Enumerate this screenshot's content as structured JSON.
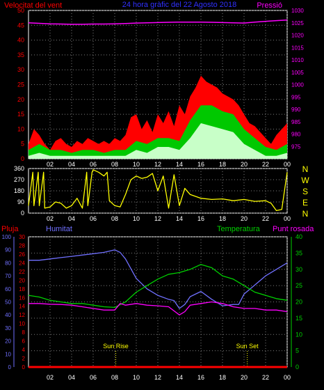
{
  "colors": {
    "background": "#000000",
    "grid": "#7f7f7f",
    "frame": "#ffffff",
    "wind_gust": "#ff0000",
    "wind_avg": "#00c800",
    "wind_min": "#c8ffc8",
    "pressure": "#ff00ff",
    "direction": "#ffff00",
    "rain": "#ff0000",
    "humidity": "#7070ff",
    "temperature": "#00d000",
    "dewpoint": "#ff00ff",
    "sun": "#ffff00"
  },
  "chart_data": [
    {
      "type": "line",
      "title": "24 hora gràfic del  22 Agosto 2018",
      "left_title": "Velocitat del vent",
      "right_title": "Pressió",
      "x_ticks": [
        "02",
        "04",
        "06",
        "08",
        "10",
        "12",
        "14",
        "16",
        "18",
        "20",
        "22",
        "00"
      ],
      "xlim": [
        0,
        24
      ],
      "ylim_left": [
        0,
        50
      ],
      "y_ticks_left": [
        "0",
        "5",
        "10",
        "15",
        "20",
        "25",
        "30",
        "35",
        "40",
        "45",
        "50"
      ],
      "ylim_right": [
        970,
        1030
      ],
      "y_ticks_right": [
        "975",
        "980",
        "985",
        "990",
        "995",
        "1000",
        "1005",
        "1010",
        "1015",
        "1020",
        "1025",
        "1030"
      ],
      "series": [
        {
          "key": "pressure",
          "axis": "right",
          "x": [
            0,
            1,
            2,
            3,
            4,
            5,
            6,
            7,
            8,
            9,
            10,
            11,
            12,
            13,
            14,
            15,
            16,
            17,
            18,
            19,
            20,
            21,
            22,
            23,
            24
          ],
          "y": [
            1025.0,
            1024.8,
            1024.6,
            1024.5,
            1024.4,
            1024.4,
            1024.5,
            1024.5,
            1024.6,
            1024.7,
            1024.9,
            1025.0,
            1025.1,
            1025.2,
            1025.3,
            1025.3,
            1025.3,
            1025.2,
            1025.1,
            1025.0,
            1024.9,
            1025.3,
            1025.6,
            1025.9,
            1026.1
          ]
        },
        {
          "key": "wind_gust",
          "axis": "left",
          "x": [
            0,
            0.5,
            1,
            1.5,
            2,
            2.5,
            3,
            3.5,
            4,
            4.5,
            5,
            5.5,
            6,
            6.5,
            7,
            7.5,
            8,
            8.5,
            9,
            9.5,
            10,
            10.5,
            11,
            11.5,
            12,
            12.5,
            13,
            13.5,
            14,
            14.5,
            15,
            15.5,
            16,
            16.5,
            17,
            17.5,
            18,
            18.5,
            19,
            19.5,
            20,
            20.5,
            21,
            21.5,
            22,
            22.5,
            23,
            23.5,
            24
          ],
          "y": [
            5,
            10,
            8,
            5,
            3,
            6,
            7,
            5,
            4,
            6,
            5,
            7,
            6,
            5,
            6,
            5,
            7,
            6,
            8,
            14,
            15,
            10,
            13,
            9,
            15,
            12,
            16,
            11,
            18,
            15,
            21,
            24,
            28,
            26,
            25,
            24,
            22,
            21,
            20,
            18,
            15,
            12,
            11,
            9,
            7,
            5,
            8,
            10,
            12
          ]
        },
        {
          "key": "wind_avg",
          "axis": "left",
          "x": [
            0,
            1,
            2,
            3,
            4,
            5,
            6,
            7,
            8,
            9,
            10,
            11,
            12,
            13,
            14,
            15,
            16,
            17,
            18,
            19,
            20,
            21,
            22,
            23,
            24
          ],
          "y": [
            3,
            5,
            3,
            3,
            2,
            3,
            3,
            2,
            3,
            3,
            6,
            5,
            7,
            7,
            6,
            13,
            18,
            18,
            16,
            15,
            10,
            7,
            4,
            3,
            5
          ]
        },
        {
          "key": "wind_min",
          "axis": "left",
          "x": [
            0,
            1,
            2,
            3,
            4,
            5,
            6,
            7,
            8,
            9,
            10,
            11,
            12,
            13,
            14,
            15,
            16,
            17,
            18,
            19,
            20,
            21,
            22,
            23,
            24
          ],
          "y": [
            1,
            2,
            1,
            1,
            1,
            1,
            1,
            1,
            1,
            1,
            3,
            2,
            4,
            4,
            3,
            7,
            12,
            11,
            10,
            9,
            5,
            3,
            1,
            1,
            2
          ]
        }
      ]
    },
    {
      "type": "line",
      "title": "",
      "x_ticks": [
        "02",
        "04",
        "06",
        "08",
        "10",
        "12",
        "14",
        "16",
        "18",
        "20",
        "22",
        "00"
      ],
      "xlim": [
        0,
        24
      ],
      "ylim": [
        0,
        360
      ],
      "y_ticks": [
        "0",
        "90",
        "180",
        "270",
        "360"
      ],
      "compass_labels": [
        "N",
        "W",
        "S",
        "E",
        "N"
      ],
      "series": [
        {
          "key": "direction",
          "x": [
            0,
            0.4,
            0.5,
            0.9,
            1.0,
            1.4,
            1.5,
            2,
            2.5,
            3,
            3.5,
            4,
            4.5,
            5,
            5.4,
            5.5,
            5.9,
            6,
            6.5,
            7,
            7.3,
            7.5,
            8,
            8.5,
            9,
            9.5,
            10,
            10.5,
            11,
            11.5,
            12,
            12.5,
            13,
            13.5,
            14,
            14.5,
            15,
            16,
            17,
            18,
            19,
            20,
            21,
            22,
            22.5,
            23,
            23.5,
            24
          ],
          "y": [
            60,
            330,
            60,
            330,
            60,
            330,
            40,
            50,
            90,
            80,
            40,
            60,
            120,
            40,
            330,
            60,
            330,
            350,
            330,
            300,
            330,
            100,
            60,
            50,
            150,
            270,
            300,
            280,
            290,
            320,
            180,
            300,
            40,
            310,
            60,
            200,
            150,
            120,
            110,
            115,
            100,
            110,
            95,
            100,
            80,
            20,
            30,
            330
          ]
        }
      ]
    },
    {
      "type": "line",
      "title": "",
      "rain_label": "Pluja",
      "humidity_label": "Humitat",
      "temperature_label": "Temperatura",
      "dewpoint_label": "Punt rosada",
      "x_ticks": [
        "02",
        "04",
        "06",
        "08",
        "10",
        "12",
        "14",
        "16",
        "18",
        "20",
        "22",
        "00"
      ],
      "xlim": [
        0,
        24
      ],
      "ylim_humidity": [
        0,
        100
      ],
      "y_ticks_humidity": [
        "0",
        "10",
        "20",
        "30",
        "40",
        "50",
        "60",
        "70",
        "80",
        "90",
        "100"
      ],
      "ylim_rain": [
        0,
        30
      ],
      "y_ticks_rain": [
        "0",
        "2",
        "4",
        "6",
        "8",
        "10",
        "12",
        "14",
        "16",
        "18",
        "20",
        "22",
        "24",
        "26",
        "28",
        "30"
      ],
      "ylim_temp": [
        0,
        40
      ],
      "y_ticks_temp": [
        "0",
        "5",
        "10",
        "15",
        "20",
        "25",
        "30",
        "35",
        "40"
      ],
      "annotations": [
        {
          "label": "Sun Rise",
          "x": 8.1
        },
        {
          "label": "Sun Set",
          "x": 20.3
        }
      ],
      "series": [
        {
          "key": "rain",
          "axis": "rain",
          "x": [
            0,
            24
          ],
          "y": [
            0,
            0
          ]
        },
        {
          "key": "humidity",
          "axis": "humidity",
          "x": [
            0,
            1,
            2,
            3,
            4,
            5,
            6,
            7,
            8,
            8.5,
            9,
            10,
            11,
            12,
            13,
            13.5,
            14,
            14.5,
            15,
            16,
            17,
            18,
            19,
            19.5,
            20,
            21,
            22,
            23,
            24
          ],
          "y": [
            82,
            82,
            83,
            84,
            85,
            86,
            87,
            88,
            90,
            88,
            83,
            68,
            60,
            55,
            52,
            51,
            45,
            48,
            54,
            58,
            52,
            47,
            48,
            48,
            56,
            63,
            70,
            75,
            80
          ]
        },
        {
          "key": "temperature",
          "axis": "temp",
          "x": [
            0,
            1,
            2,
            3,
            4,
            5,
            6,
            7,
            8,
            9,
            10,
            11,
            12,
            13,
            14,
            15,
            16,
            17,
            18,
            19,
            20,
            21,
            22,
            23,
            24
          ],
          "y": [
            22,
            21.5,
            20.5,
            20,
            19.5,
            19.5,
            19,
            18.5,
            18.3,
            20,
            23,
            25,
            27,
            28.5,
            29,
            30,
            31.5,
            30.5,
            28,
            27,
            25,
            23,
            22,
            21,
            20.5
          ]
        },
        {
          "key": "dewpoint",
          "axis": "temp",
          "x": [
            0,
            1,
            2,
            3,
            4,
            5,
            6,
            7,
            8,
            8.5,
            9,
            10,
            11,
            12,
            13,
            14,
            14.5,
            15,
            16,
            17,
            18,
            19,
            20,
            21,
            22,
            23,
            24
          ],
          "y": [
            19.5,
            19.5,
            19.3,
            19.2,
            19,
            18.5,
            18,
            17.5,
            17.5,
            19.5,
            19,
            19.5,
            19,
            18.8,
            18.5,
            16,
            17,
            19,
            19.5,
            20,
            19.5,
            18.5,
            18,
            18,
            17.5,
            17.5,
            17
          ]
        }
      ]
    }
  ]
}
